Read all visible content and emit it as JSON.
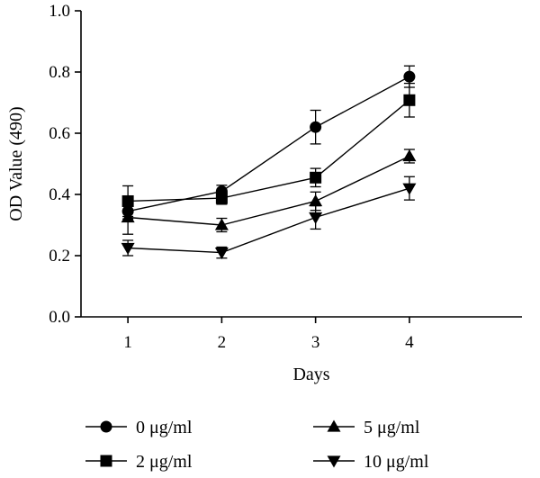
{
  "chart_data": {
    "type": "line",
    "xlabel": "Days",
    "ylabel": "OD Value (490)",
    "x": [
      1,
      2,
      3,
      4
    ],
    "x_tick_labels": [
      "1",
      "2",
      "3",
      "4"
    ],
    "y_tick_labels": [
      "0.0",
      "0.2",
      "0.4",
      "0.6",
      "0.8",
      "1.0"
    ],
    "ylim": [
      0,
      1.0
    ],
    "xlim": [
      0.5,
      5.2
    ],
    "grid": false,
    "legend_position": "bottom",
    "series": [
      {
        "name": "0 μg/ml",
        "marker": "circle",
        "values": [
          0.345,
          0.41,
          0.62,
          0.785
        ],
        "errors": [
          0.025,
          0.02,
          0.055,
          0.035
        ]
      },
      {
        "name": "2 μg/ml",
        "marker": "square",
        "values": [
          0.378,
          0.388,
          0.455,
          0.708
        ],
        "errors": [
          0.05,
          0.02,
          0.03,
          0.055
        ]
      },
      {
        "name": "5 μg/ml",
        "marker": "triangle-up",
        "values": [
          0.325,
          0.3,
          0.378,
          0.525
        ],
        "errors": [
          0.055,
          0.022,
          0.03,
          0.022
        ]
      },
      {
        "name": "10 μg/ml",
        "marker": "triangle-down",
        "values": [
          0.225,
          0.21,
          0.325,
          0.42
        ],
        "errors": [
          0.025,
          0.018,
          0.038,
          0.038
        ]
      }
    ]
  }
}
